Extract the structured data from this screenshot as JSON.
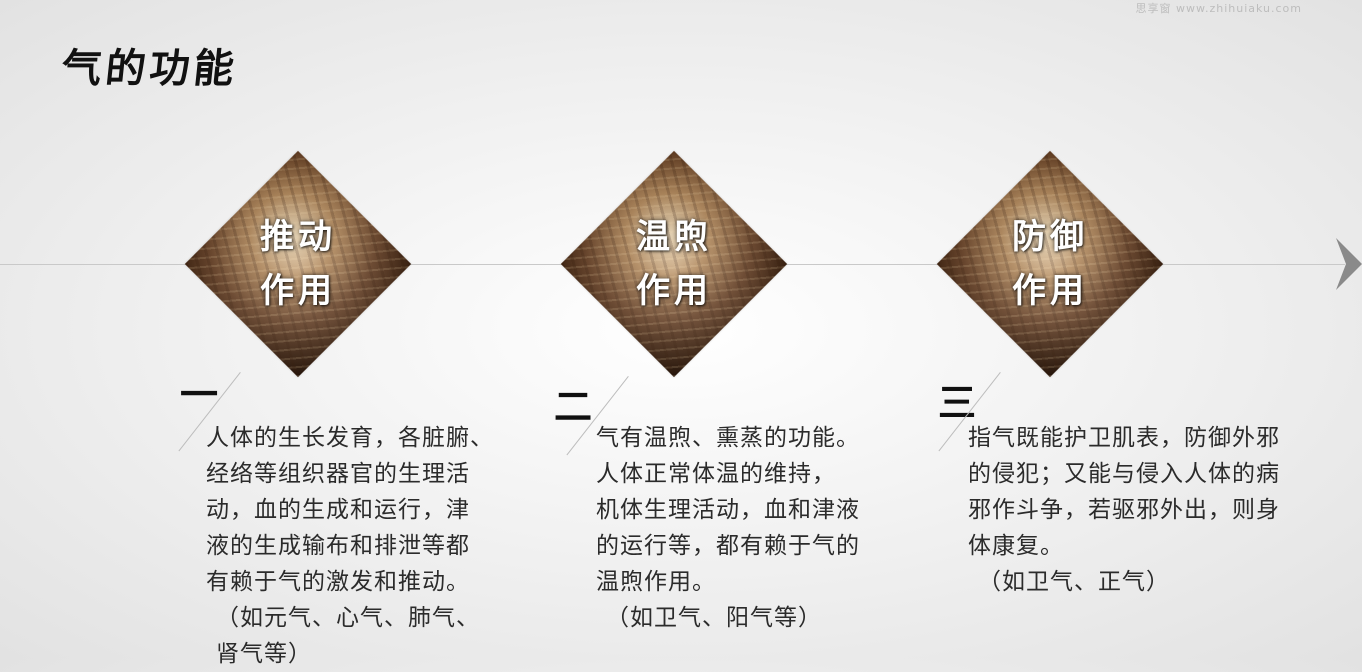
{
  "title": "气的功能",
  "watermark": "思享窗 www.zhihuiaku.com",
  "cards": [
    {
      "label_line1": "推动",
      "label_line2": "作用",
      "numeral": "一",
      "body": "人体的生长发育，各脏腑、\n经络等组织器官的生理活\n动，血的生成和运行，津\n液的生成输布和排泄等都\n有赖于气的激发和推动。",
      "example": "（如元气、心气、肺气、\n肾气等）"
    },
    {
      "label_line1": "温煦",
      "label_line2": "作用",
      "numeral": "二",
      "body": "气有温煦、熏蒸的功能。\n人体正常体温的维持，\n机体生理活动，血和津液\n的运行等，都有赖于气的\n温煦作用。",
      "example": "（如卫气、阳气等）"
    },
    {
      "label_line1": "防御",
      "label_line2": "作用",
      "numeral": "三",
      "body": "指气既能护卫肌表，防御外邪\n的侵犯；又能与侵入人体的病\n邪作斗争，若驱邪外出，则身\n体康复。",
      "example": "（如卫气、正气）"
    }
  ],
  "colors": {
    "background": "#f2f2f2",
    "title": "#111111",
    "line": "#c9c9c9",
    "arrow": "#8a8a8a"
  }
}
